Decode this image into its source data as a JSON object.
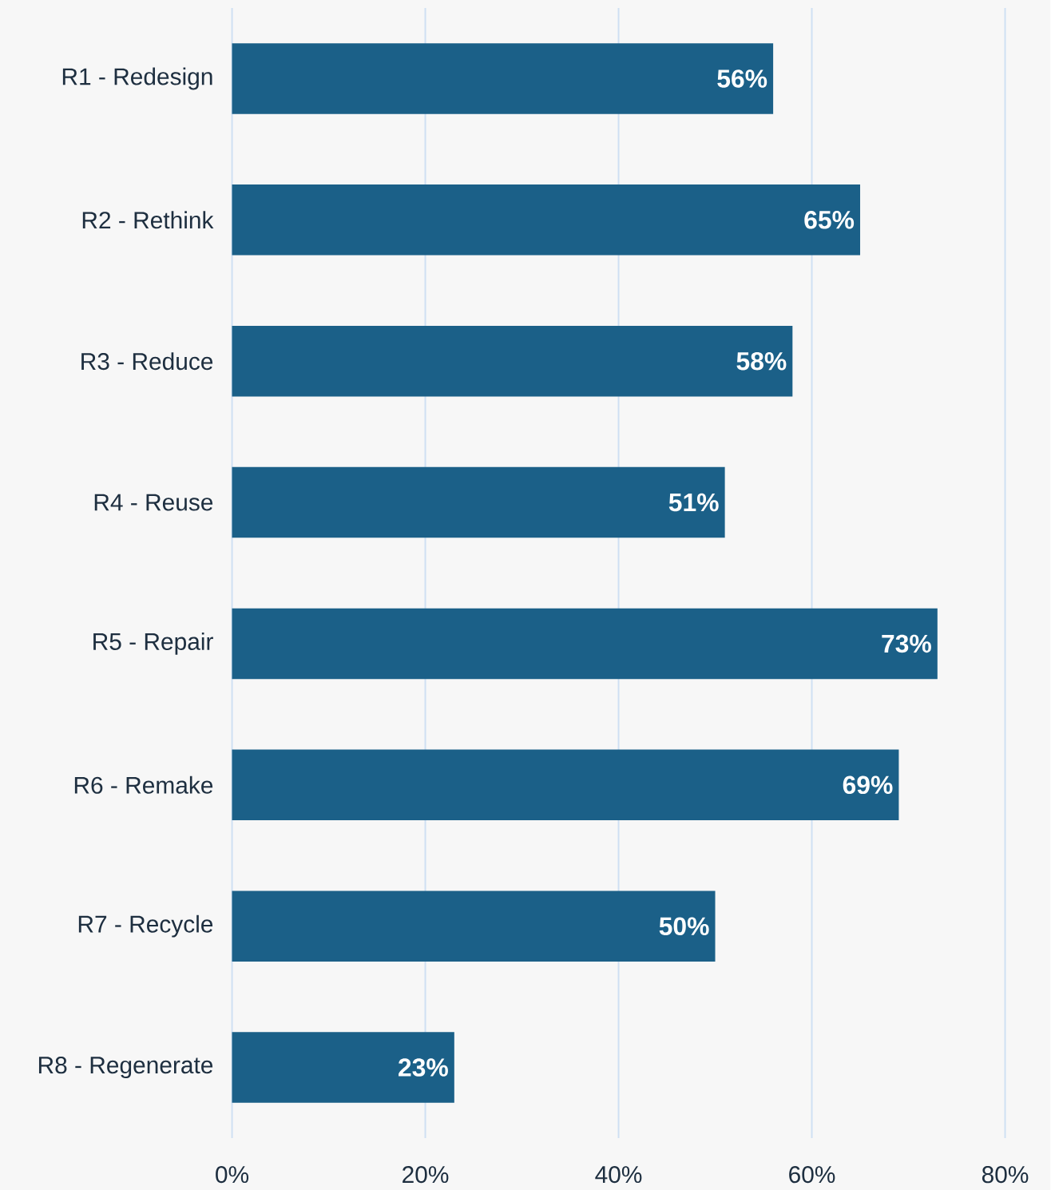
{
  "chart_data": {
    "type": "bar",
    "orientation": "horizontal",
    "categories": [
      "R1 - Redesign",
      "R2 - Rethink",
      "R3 - Reduce",
      "R4 - Reuse",
      "R5 - Repair",
      "R6 - Remake",
      "R7 - Recycle",
      "R8 - Regenerate"
    ],
    "values": [
      56,
      65,
      58,
      51,
      73,
      69,
      50,
      23
    ],
    "value_labels": [
      "56%",
      "65%",
      "58%",
      "51%",
      "73%",
      "69%",
      "50%",
      "23%"
    ],
    "color": "#1b6088",
    "xlim": [
      0,
      80
    ],
    "xticks": [
      {
        "value": 0,
        "label": "0%"
      },
      {
        "value": 20,
        "label": "20%"
      },
      {
        "value": 40,
        "label": "40%"
      },
      {
        "value": 60,
        "label": "60%"
      },
      {
        "value": 80,
        "label": "80%"
      }
    ],
    "grid": "x"
  }
}
